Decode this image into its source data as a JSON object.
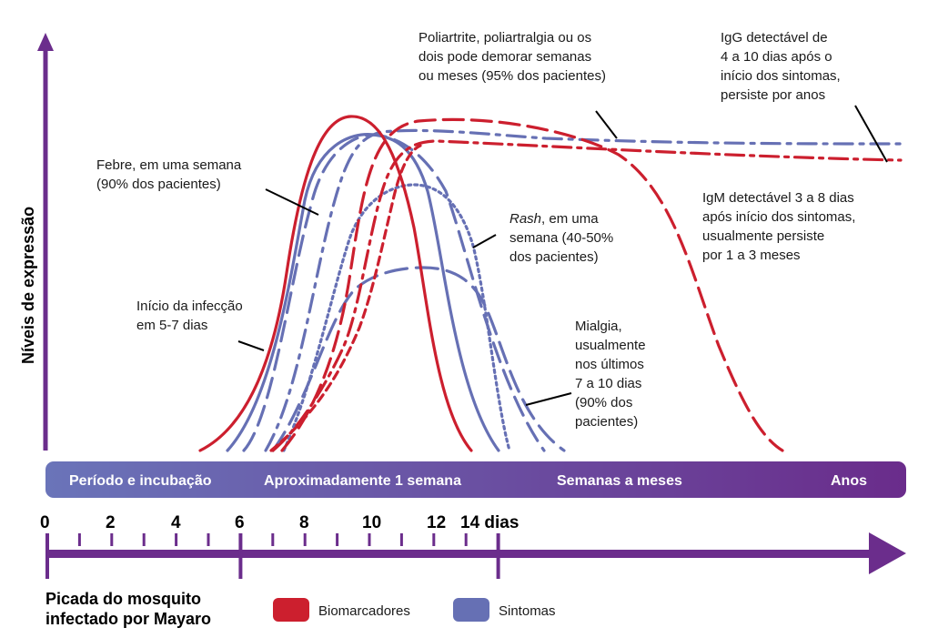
{
  "y_axis_label": "Níveis de expressão",
  "annotations": {
    "infection": [
      "Início da infecção",
      "em 5-7 dias"
    ],
    "fever": [
      "Febre, em uma semana",
      "(90% dos pacientes)"
    ],
    "rash_em": "Rash",
    "rash": [
      ", em uma",
      "semana (40-50%",
      "dos pacientes)"
    ],
    "polyarthritis": [
      "Poliartrite, poliartralgia ou os",
      "dois pode demorar semanas",
      "ou meses (95% dos pacientes)"
    ],
    "igg": [
      "IgG detectável de",
      "4 a 10 dias após o",
      "início dos sintomas,",
      "persiste por anos"
    ],
    "igm": [
      "IgM detectável 3 a 8 dias",
      "após início dos sintomas,",
      "usualmente persiste",
      "por 1 a 3 meses"
    ],
    "myalgia": [
      "Mialgia,",
      "usualmente",
      "nos últimos",
      "7 a 10 dias",
      "(90% dos",
      "pacientes)"
    ]
  },
  "phases": [
    "Período e incubação",
    "Aproximadamente 1 semana",
    "Semanas a meses",
    "Anos"
  ],
  "ticks": [
    "0",
    "2",
    "4",
    "6",
    "8",
    "10",
    "12",
    "14 dias"
  ],
  "bite_label": [
    "Picada do mosquito",
    "infectado por Mayaro"
  ],
  "legend": {
    "biomarkers": "Biomarcadores",
    "symptoms": "Sintomas"
  },
  "colors": {
    "biomarkers": "#cc1f2e",
    "symptoms": "#6670b4",
    "purple": "#6b2d8c",
    "bar_start": "#6a74b9",
    "bar_end": "#6a2c8b"
  }
}
